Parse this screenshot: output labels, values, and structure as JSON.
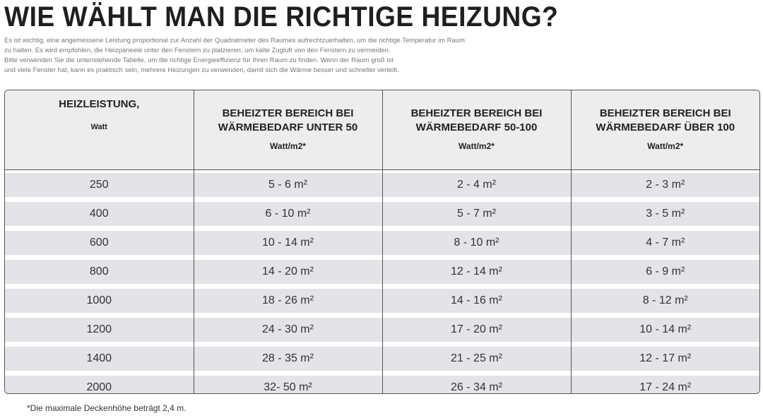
{
  "header": {
    "title": "WIE WÄHLT MAN DIE RICHTIGE HEIZUNG?",
    "intro": [
      "Es ist wichtig, eine angemessene Leistung proportional zur Anzahl der Quadratmeter des Raumes aufrechtzuerhalten, um die richtige Temperatur im Raum",
      "zu halten. Es wird empfohlen, die Heizpaneele unter den Fenstern zu platzieren, um kalte Zugluft von den Fenstern zu vermeiden.",
      "Bitte verwenden Sie die untenstehende Tabelle, um die richtige Energieeffizienz für Ihren Raum zu finden. Wenn der Raum groß ist",
      "und viele Fenster hat, kann es praktisch sein, mehrere Heizungen zu verwenden, damit sich die Wärme besser und schneller verteilt."
    ]
  },
  "table": {
    "columns": [
      {
        "label": "HEIZLEISTUNG,",
        "unit": "Watt"
      },
      {
        "label": "BEHEIZTER BEREICH BEI WÄRMEBEDARF UNTER 50",
        "unit": "Watt/m2*"
      },
      {
        "label": "BEHEIZTER BEREICH BEI WÄRMEBEDARF 50-100",
        "unit": "Watt/m2*"
      },
      {
        "label": "BEHEIZTER BEREICH BEI WÄRMEBEDARF ÜBER 100",
        "unit": "Watt/m2*"
      }
    ],
    "rows": [
      [
        "250",
        "5 - 6 m²",
        "2 - 4 m²",
        "2 - 3 m²"
      ],
      [
        "400",
        "6 - 10 m²",
        "5 - 7 m²",
        "3 - 5 m²"
      ],
      [
        "600",
        "10 - 14 m²",
        "8 - 10 m²",
        "4 - 7 m²"
      ],
      [
        "800",
        "14 - 20 m²",
        "12 - 14 m²",
        "6 - 9 m²"
      ],
      [
        "1000",
        "18 - 26 m²",
        "14 - 16 m²",
        "8 - 12 m²"
      ],
      [
        "1200",
        "24 - 30 m²",
        "17 - 20 m²",
        "10 - 14 m²"
      ],
      [
        "1400",
        "28 - 35 m²",
        "21 - 25 m²",
        "12 - 17 m²"
      ],
      [
        "2000",
        "32- 50 m²",
        "26 - 34 m²",
        "17 - 24 m²"
      ]
    ]
  },
  "footnote": "*Die maximale Deckenhöhe beträgt 2,4 m."
}
